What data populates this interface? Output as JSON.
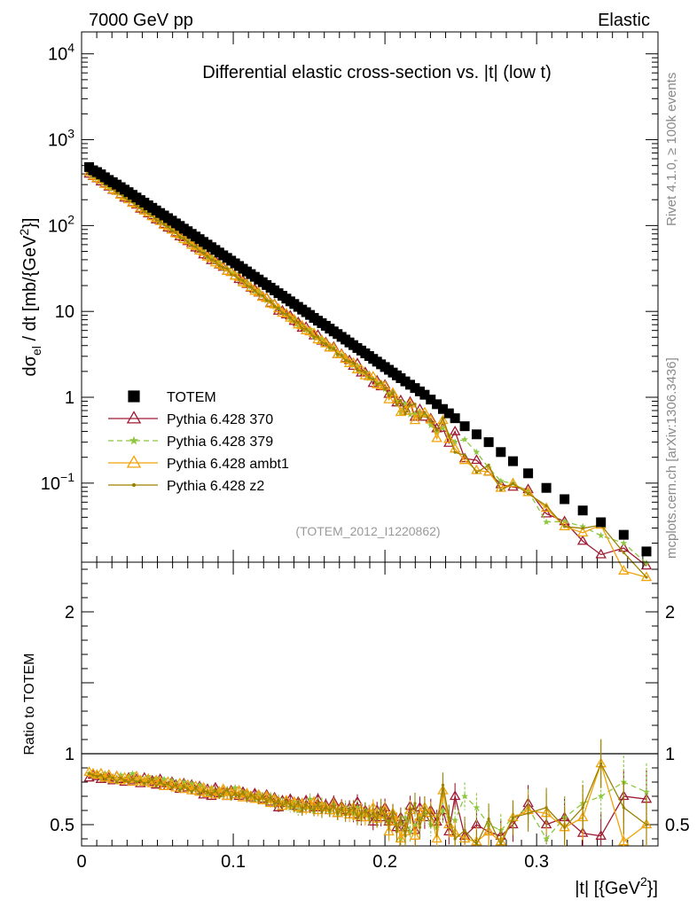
{
  "header": {
    "left": "7000 GeV pp",
    "right": "Elastic"
  },
  "side_labels": {
    "rivet": "Rivet 4.1.0, ≥ 100k events",
    "source": "mcplots.cern.ch [arXiv:1306.3436]"
  },
  "colors": {
    "totem": "#000000",
    "p370": "#9e1b32",
    "p379": "#8dc63f",
    "ambt1": "#f0a30a",
    "z2": "#9a8200"
  },
  "chart_data": [
    {
      "type": "scatter",
      "title": "Differential elastic cross-section vs. |t| (low t)",
      "analysis_tag": "(TOTEM_2012_I1220862)",
      "ylabel_main": "dσ",
      "ylabel_sub": "el",
      "ylabel_rest": " / dt [mb/{GeV",
      "ylabel_sup": "2",
      "ylabel_end": "}]",
      "yscale": "log",
      "ylim": [
        0.012,
        18000
      ],
      "xlim": [
        0,
        0.38
      ],
      "y_ticks": [
        {
          "value": 0.1,
          "base": "10",
          "exp": "−1"
        },
        {
          "value": 1,
          "base": "1",
          "exp": ""
        },
        {
          "value": 10,
          "base": "10",
          "exp": ""
        },
        {
          "value": 100,
          "base": "10",
          "exp": "2"
        },
        {
          "value": 1000,
          "base": "10",
          "exp": "3"
        },
        {
          "value": 10000,
          "base": "10",
          "exp": "4"
        }
      ],
      "legend_position": "bottom-left",
      "legend": [
        {
          "key": "totem",
          "label": "TOTEM",
          "marker": "square"
        },
        {
          "key": "p370",
          "label": "Pythia 6.428 370",
          "marker": "open-triangle"
        },
        {
          "key": "p379",
          "label": "Pythia 6.428 379",
          "marker": "star"
        },
        {
          "key": "ambt1",
          "label": "Pythia 6.428 ambt1",
          "marker": "open-triangle"
        },
        {
          "key": "z2",
          "label": "Pythia 6.428 z2",
          "marker": "dot"
        }
      ],
      "totem": {
        "x": [
          0.005,
          0.0076,
          0.0102,
          0.0128,
          0.0154,
          0.018,
          0.0206,
          0.0232,
          0.0258,
          0.0284,
          0.031,
          0.0336,
          0.0362,
          0.0388,
          0.0414,
          0.044,
          0.0466,
          0.0492,
          0.0518,
          0.0544,
          0.057,
          0.0596,
          0.0622,
          0.0648,
          0.0674,
          0.07,
          0.0726,
          0.0752,
          0.0778,
          0.0804,
          0.083,
          0.0856,
          0.0882,
          0.0908,
          0.0934,
          0.096,
          0.0986,
          0.1012,
          0.1038,
          0.1064,
          0.109,
          0.1116,
          0.1142,
          0.1168,
          0.1194,
          0.122,
          0.1246,
          0.1272,
          0.1298,
          0.1324,
          0.135,
          0.1376,
          0.1402,
          0.1428,
          0.1454,
          0.148,
          0.1506,
          0.1532,
          0.1558,
          0.1584,
          0.161,
          0.1636,
          0.1662,
          0.1688,
          0.1714,
          0.174,
          0.1766,
          0.1792,
          0.1818,
          0.1844,
          0.187,
          0.1896,
          0.1922,
          0.1948,
          0.1974,
          0.2,
          0.2026,
          0.2052,
          0.2078,
          0.2104,
          0.2134,
          0.2166,
          0.2198,
          0.223,
          0.2262,
          0.2302,
          0.2342,
          0.2382,
          0.2422,
          0.2462,
          0.2526,
          0.2604,
          0.2684,
          0.2764,
          0.2844,
          0.2944,
          0.3064,
          0.3184,
          0.3304,
          0.3424,
          0.3574,
          0.3724
        ],
        "y": [
          480,
          440,
          420,
          395,
          365,
          340,
          320,
          300,
          280,
          262,
          245,
          228,
          212,
          198,
          185,
          172,
          161,
          150,
          140,
          131,
          122,
          114,
          106,
          99,
          92,
          86,
          80,
          74.5,
          69.5,
          64.5,
          60,
          56,
          52,
          48.5,
          45,
          42,
          39,
          36.3,
          33.8,
          31.4,
          29.2,
          27.2,
          25.3,
          23.5,
          21.9,
          20.3,
          18.9,
          17.6,
          16.3,
          15.2,
          14.1,
          13.1,
          12.2,
          11.3,
          10.5,
          9.8,
          9.1,
          8.4,
          7.8,
          7.3,
          6.8,
          6.3,
          5.85,
          5.45,
          5.05,
          4.7,
          4.35,
          4.05,
          3.75,
          3.5,
          3.25,
          3.02,
          2.8,
          2.6,
          2.42,
          2.25,
          2.09,
          1.94,
          1.8,
          1.67,
          1.53,
          1.4,
          1.28,
          1.17,
          1.07,
          0.94,
          0.83,
          0.73,
          0.65,
          0.57,
          0.46,
          0.37,
          0.3,
          0.23,
          0.18,
          0.13,
          0.088,
          0.065,
          0.048,
          0.035,
          0.025,
          0.016
        ]
      }
    },
    {
      "type": "line",
      "ylabel": "Ratio to TOTEM",
      "xlabel": "|t|  [{GeV",
      "xlabel_sup": "2",
      "xlabel_end": "}]",
      "xlim": [
        0,
        0.38
      ],
      "ylim": [
        0.35,
        2.35
      ],
      "reference_line": 1,
      "x_ticks": [
        {
          "value": 0,
          "label": "0"
        },
        {
          "value": 0.1,
          "label": "0.1"
        },
        {
          "value": 0.2,
          "label": "0.2"
        },
        {
          "value": 0.3,
          "label": "0.3"
        }
      ],
      "y_ticks": [
        {
          "value": 0.5,
          "label": "0.5"
        },
        {
          "value": 1,
          "label": "1"
        },
        {
          "value": 2,
          "label": "2"
        }
      ],
      "series": [
        {
          "key": "p370",
          "name": "Pythia 6.428 370",
          "marker": "open-triangle",
          "dash": "",
          "values": [
            0.83,
            0.85,
            0.84,
            0.82,
            0.84,
            0.83,
            0.81,
            0.84,
            0.82,
            0.8,
            0.83,
            0.81,
            0.82,
            0.79,
            0.83,
            0.8,
            0.81,
            0.78,
            0.82,
            0.79,
            0.77,
            0.8,
            0.78,
            0.75,
            0.79,
            0.76,
            0.78,
            0.74,
            0.77,
            0.71,
            0.75,
            0.7,
            0.76,
            0.72,
            0.73,
            0.7,
            0.74,
            0.71,
            0.7,
            0.73,
            0.71,
            0.69,
            0.72,
            0.7,
            0.68,
            0.71,
            0.66,
            0.69,
            0.62,
            0.67,
            0.65,
            0.68,
            0.63,
            0.66,
            0.61,
            0.67,
            0.64,
            0.62,
            0.68,
            0.62,
            0.64,
            0.6,
            0.66,
            0.58,
            0.63,
            0.6,
            0.62,
            0.57,
            0.66,
            0.55,
            0.6,
            0.58,
            0.52,
            0.6,
            0.55,
            0.62,
            0.52,
            0.57,
            0.48,
            0.55,
            0.48,
            0.63,
            0.46,
            0.62,
            0.55,
            0.6,
            0.52,
            0.6,
            0.45,
            0.7,
            0.42,
            0.5,
            0.45,
            0.42,
            0.5,
            0.65,
            0.5,
            0.55,
            0.44,
            0.42,
            0.7,
            0.68
          ]
        },
        {
          "key": "p379",
          "name": "Pythia 6.428 379",
          "marker": "star",
          "dash": "6 4",
          "values": [
            0.86,
            0.84,
            0.85,
            0.83,
            0.86,
            0.82,
            0.84,
            0.81,
            0.85,
            0.82,
            0.84,
            0.86,
            0.81,
            0.83,
            0.8,
            0.84,
            0.81,
            0.83,
            0.79,
            0.82,
            0.78,
            0.81,
            0.79,
            0.76,
            0.8,
            0.77,
            0.79,
            0.75,
            0.78,
            0.76,
            0.72,
            0.76,
            0.73,
            0.75,
            0.71,
            0.74,
            0.72,
            0.76,
            0.7,
            0.73,
            0.72,
            0.7,
            0.68,
            0.72,
            0.7,
            0.66,
            0.7,
            0.64,
            0.68,
            0.66,
            0.64,
            0.62,
            0.66,
            0.6,
            0.64,
            0.62,
            0.68,
            0.6,
            0.63,
            0.65,
            0.62,
            0.59,
            0.64,
            0.58,
            0.61,
            0.62,
            0.6,
            0.58,
            0.62,
            0.56,
            0.6,
            0.55,
            0.58,
            0.56,
            0.6,
            0.55,
            0.52,
            0.58,
            0.5,
            0.4,
            0.55,
            0.45,
            0.5,
            0.55,
            0.58,
            0.5,
            0.48,
            0.6,
            0.55,
            0.53,
            0.7,
            0.62,
            0.5,
            0.46,
            0.55,
            0.62,
            0.4,
            0.55,
            0.65,
            0.7,
            0.8,
            0.73
          ]
        },
        {
          "key": "ambt1",
          "name": "Pythia 6.428 ambt1",
          "marker": "open-triangle",
          "dash": "",
          "values": [
            0.87,
            0.86,
            0.85,
            0.86,
            0.83,
            0.85,
            0.82,
            0.84,
            0.81,
            0.83,
            0.82,
            0.8,
            0.84,
            0.81,
            0.8,
            0.82,
            0.79,
            0.81,
            0.8,
            0.77,
            0.8,
            0.78,
            0.76,
            0.79,
            0.75,
            0.78,
            0.74,
            0.77,
            0.73,
            0.76,
            0.72,
            0.74,
            0.71,
            0.73,
            0.75,
            0.7,
            0.73,
            0.71,
            0.74,
            0.69,
            0.72,
            0.7,
            0.68,
            0.71,
            0.67,
            0.7,
            0.65,
            0.68,
            0.66,
            0.63,
            0.67,
            0.64,
            0.66,
            0.62,
            0.65,
            0.61,
            0.64,
            0.66,
            0.6,
            0.63,
            0.62,
            0.6,
            0.64,
            0.58,
            0.62,
            0.59,
            0.57,
            0.62,
            0.56,
            0.6,
            0.55,
            0.58,
            0.62,
            0.54,
            0.57,
            0.6,
            0.45,
            0.58,
            0.52,
            0.4,
            0.45,
            0.6,
            0.42,
            0.55,
            0.62,
            0.58,
            0.4,
            0.74,
            0.5,
            0.44,
            0.4,
            0.38,
            0.45,
            0.38,
            0.55,
            0.6,
            0.58,
            0.48,
            0.55,
            0.93,
            0.38,
            0.5
          ]
        },
        {
          "key": "z2",
          "name": "Pythia 6.428 z2",
          "marker": "dot",
          "dash": "",
          "values": [
            0.86,
            0.85,
            0.84,
            0.85,
            0.82,
            0.84,
            0.83,
            0.8,
            0.83,
            0.81,
            0.8,
            0.82,
            0.8,
            0.81,
            0.79,
            0.8,
            0.82,
            0.77,
            0.8,
            0.78,
            0.79,
            0.76,
            0.78,
            0.74,
            0.77,
            0.75,
            0.73,
            0.76,
            0.72,
            0.74,
            0.73,
            0.71,
            0.74,
            0.7,
            0.72,
            0.75,
            0.69,
            0.72,
            0.7,
            0.73,
            0.68,
            0.71,
            0.69,
            0.67,
            0.7,
            0.66,
            0.69,
            0.65,
            0.67,
            0.63,
            0.66,
            0.64,
            0.62,
            0.66,
            0.6,
            0.64,
            0.62,
            0.6,
            0.65,
            0.59,
            0.62,
            0.6,
            0.63,
            0.58,
            0.61,
            0.57,
            0.6,
            0.62,
            0.55,
            0.58,
            0.6,
            0.56,
            0.58,
            0.54,
            0.62,
            0.56,
            0.5,
            0.58,
            0.45,
            0.55,
            0.42,
            0.58,
            0.65,
            0.48,
            0.62,
            0.56,
            0.5,
            0.78,
            0.55,
            0.4,
            0.46,
            0.36,
            0.54,
            0.36,
            0.55,
            0.58,
            0.62,
            0.48,
            0.62,
            0.93,
            0.62,
            0.5
          ]
        }
      ]
    }
  ]
}
